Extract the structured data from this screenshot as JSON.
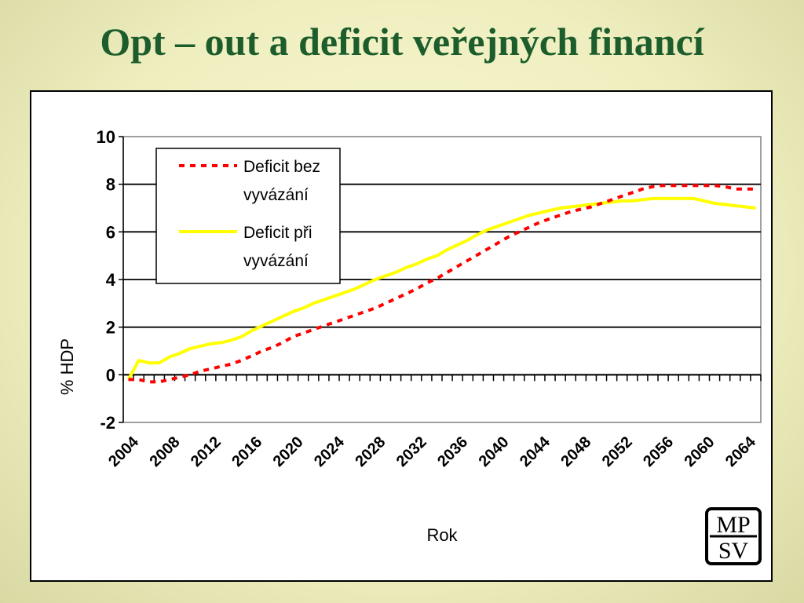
{
  "slide": {
    "title": "Opt – out a deficit veřejných financí"
  },
  "logo": {
    "top": "MP",
    "bottom": "SV"
  },
  "colors": {
    "title": "#1d5d2c",
    "series_1": "#ff0000",
    "series_2": "#ffff00"
  },
  "chart_data": {
    "type": "line",
    "xlabel": "Rok",
    "ylabel": "% HDP",
    "ylim": [
      -2,
      10
    ],
    "y_ticks": [
      "-2",
      "0",
      "2",
      "4",
      "6",
      "8",
      "10"
    ],
    "x_ticks": [
      "2004",
      "2008",
      "2012",
      "2016",
      "2020",
      "2024",
      "2028",
      "2032",
      "2036",
      "2040",
      "2044",
      "2048",
      "2052",
      "2056",
      "2060",
      "2064"
    ],
    "grid": "horizontal",
    "legend_position": "top-left",
    "x": [
      2004,
      2005,
      2006,
      2007,
      2008,
      2009,
      2010,
      2011,
      2012,
      2013,
      2014,
      2015,
      2016,
      2017,
      2018,
      2019,
      2020,
      2021,
      2022,
      2023,
      2024,
      2025,
      2026,
      2027,
      2028,
      2029,
      2030,
      2031,
      2032,
      2033,
      2034,
      2035,
      2036,
      2037,
      2038,
      2039,
      2040,
      2041,
      2042,
      2043,
      2044,
      2045,
      2046,
      2047,
      2048,
      2049,
      2050,
      2051,
      2052,
      2053,
      2054,
      2055,
      2056,
      2057,
      2058,
      2059,
      2060,
      2061,
      2062,
      2063,
      2064,
      2065
    ],
    "series": [
      {
        "name": "Deficit bez vyvázání",
        "name_lines": [
          "Deficit bez",
          "vyvázání"
        ],
        "style": "dashed",
        "values": [
          -0.2,
          -0.2,
          -0.3,
          -0.3,
          -0.2,
          -0.1,
          0.0,
          0.15,
          0.25,
          0.35,
          0.45,
          0.6,
          0.8,
          1.0,
          1.15,
          1.35,
          1.6,
          1.75,
          1.9,
          2.05,
          2.2,
          2.35,
          2.5,
          2.65,
          2.8,
          3.0,
          3.2,
          3.4,
          3.6,
          3.85,
          4.05,
          4.3,
          4.55,
          4.8,
          5.05,
          5.3,
          5.55,
          5.8,
          6.0,
          6.2,
          6.4,
          6.55,
          6.7,
          6.85,
          6.95,
          7.05,
          7.2,
          7.35,
          7.5,
          7.65,
          7.8,
          7.9,
          7.95,
          7.95,
          7.95,
          7.95,
          7.95,
          7.95,
          7.9,
          7.8,
          7.8,
          7.8
        ]
      },
      {
        "name": "Deficit při vyvázání",
        "name_lines": [
          "Deficit při",
          "vyvázání"
        ],
        "style": "solid",
        "values": [
          -0.2,
          0.6,
          0.5,
          0.5,
          0.75,
          0.9,
          1.1,
          1.2,
          1.3,
          1.35,
          1.45,
          1.6,
          1.85,
          2.05,
          2.25,
          2.45,
          2.65,
          2.8,
          3.0,
          3.15,
          3.3,
          3.45,
          3.6,
          3.8,
          4.0,
          4.15,
          4.3,
          4.5,
          4.65,
          4.85,
          5.0,
          5.25,
          5.45,
          5.65,
          5.9,
          6.1,
          6.25,
          6.4,
          6.55,
          6.7,
          6.8,
          6.9,
          7.0,
          7.05,
          7.1,
          7.15,
          7.2,
          7.25,
          7.3,
          7.3,
          7.35,
          7.4,
          7.4,
          7.4,
          7.4,
          7.4,
          7.3,
          7.2,
          7.15,
          7.1,
          7.05,
          7.0
        ]
      }
    ]
  }
}
